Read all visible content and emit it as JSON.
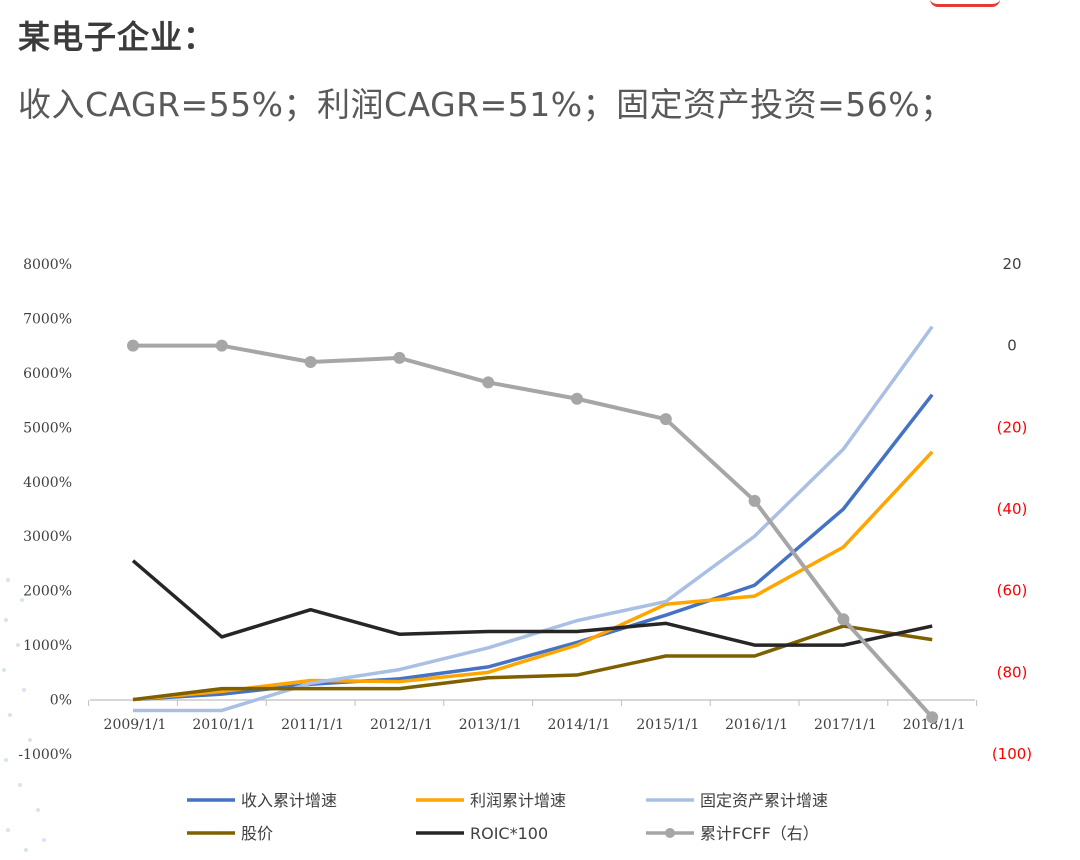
{
  "header": {
    "title": "某电子企业：",
    "subtitle": "收入CAGR=55%；利润CAGR=51%；固定资产投资=56%；"
  },
  "chart_data": {
    "type": "line",
    "categories": [
      "2009/1/1",
      "2010/1/1",
      "2011/1/1",
      "2012/1/1",
      "2013/1/1",
      "2014/1/1",
      "2015/1/1",
      "2016/1/1",
      "2017/1/1",
      "2018/1/1"
    ],
    "left_axis": {
      "ylim": [
        -1000,
        8000
      ],
      "ticks": [
        8000,
        7000,
        6000,
        5000,
        4000,
        3000,
        2000,
        1000,
        0,
        -1000
      ],
      "tick_labels": [
        "8000%",
        "7000%",
        "6000%",
        "5000%",
        "4000%",
        "3000%",
        "2000%",
        "1000%",
        "0%",
        "-1000%"
      ]
    },
    "right_axis": {
      "ylim": [
        -100,
        20
      ],
      "ticks": [
        20,
        0,
        -20,
        -40,
        -60,
        -80,
        -100
      ],
      "tick_labels": [
        "20",
        "0",
        "(20)",
        "(40)",
        "(60)",
        "(80)",
        "(100)"
      ],
      "negative_color": "#ff0000",
      "positive_color": "#404040"
    },
    "series": [
      {
        "name": "收入累计增速",
        "axis": "left",
        "color": "#4472c4",
        "marker": false,
        "values": [
          0,
          100,
          280,
          380,
          600,
          1050,
          1550,
          2100,
          3500,
          5600
        ]
      },
      {
        "name": "利润累计增速",
        "axis": "left",
        "color": "#ffa500",
        "marker": false,
        "values": [
          0,
          150,
          350,
          330,
          500,
          1000,
          1750,
          1900,
          2800,
          4550
        ]
      },
      {
        "name": "固定资产累计增速",
        "axis": "left",
        "color": "#a9bfe3",
        "marker": false,
        "values": [
          -200,
          -200,
          300,
          550,
          950,
          1450,
          1800,
          3000,
          4600,
          6850
        ]
      },
      {
        "name": "股价",
        "axis": "left",
        "color": "#7f6000",
        "marker": false,
        "values": [
          0,
          200,
          200,
          200,
          400,
          450,
          800,
          800,
          1350,
          1100
        ]
      },
      {
        "name": "ROIC*100",
        "axis": "left",
        "color": "#262626",
        "marker": false,
        "values": [
          2550,
          1150,
          1650,
          1200,
          1250,
          1250,
          1400,
          1000,
          1000,
          1350
        ]
      },
      {
        "name": "累计FCFF（右）",
        "axis": "right",
        "color": "#a6a6a6",
        "marker": true,
        "values": [
          0,
          0,
          -4,
          -3,
          -9,
          -13,
          -18,
          -38,
          -67,
          -91
        ]
      }
    ],
    "legend_position": "bottom",
    "grid": false
  }
}
